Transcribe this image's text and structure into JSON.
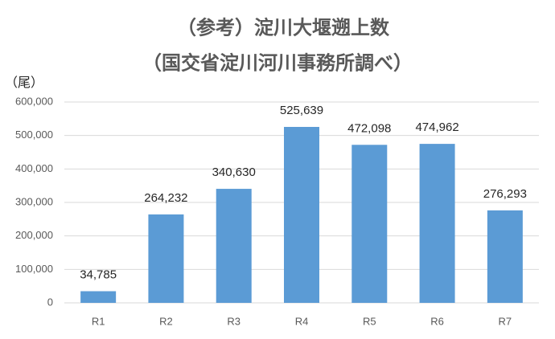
{
  "chart_data": {
    "type": "bar",
    "title": "（参考）淀川大堰遡上数",
    "subtitle": "（国交省淀川河川事務所調べ）",
    "y_label": "（尾）",
    "categories": [
      "R1",
      "R2",
      "R3",
      "R4",
      "R5",
      "R6",
      "R7"
    ],
    "values": [
      34785,
      264232,
      340630,
      525639,
      472098,
      474962,
      276293
    ],
    "value_labels": [
      "34,785",
      "264,232",
      "340,630",
      "525,639",
      "472,098",
      "474,962",
      "276,293"
    ],
    "color": "#5b9bd5",
    "ylim": [
      0,
      600000
    ],
    "yticks": [
      0,
      {
        "value": 100000,
        "label": "100,000"
      },
      {
        "value": 200000,
        "label": "200,000"
      },
      {
        "value": 300000,
        "label": "300,000"
      },
      {
        "value": 400000,
        "label": "400,000"
      },
      {
        "value": 500000,
        "label": "500,000"
      },
      {
        "value": 600000,
        "label": "600,000"
      }
    ],
    "grid": true
  }
}
